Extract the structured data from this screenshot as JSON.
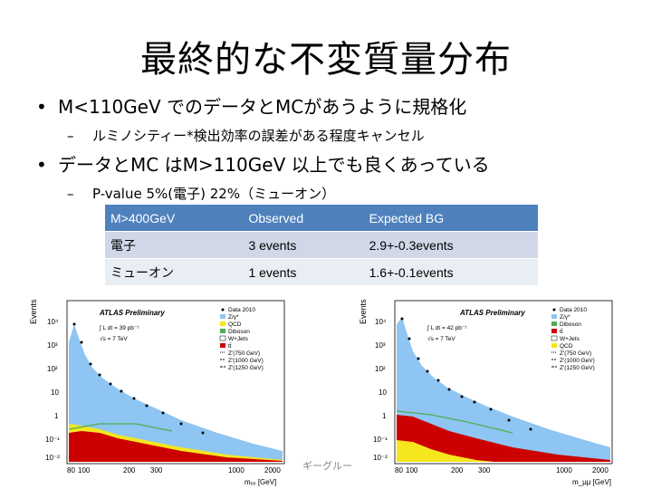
{
  "title": "最終的な不変質量分布",
  "bullets": [
    {
      "text": "M<110GeV でのデータとMCがあうように規格化",
      "sub": "ルミノシティー*検出効率の誤差がある程度キャンセル"
    },
    {
      "text": "データとMC はM>110GeV 以上でも良くあっている",
      "sub": "P-value 5%(電子) 22%（ミューオン）"
    }
  ],
  "table": {
    "headers": [
      "M>400GeV",
      "Observed",
      "Expected BG"
    ],
    "rows": [
      [
        "電子",
        "3 events",
        "2.9+-0.3events"
      ],
      [
        "ミューオン",
        "1 events",
        "1.6+-0.1events"
      ]
    ]
  },
  "plots": [
    {
      "atlas": "ATLAS Preliminary",
      "lumi": "∫ L dt = 39 pb⁻¹",
      "energy": "√s = 7 TeV",
      "ylabel": "Events",
      "xlabel": "mₑₑ [GeV]",
      "yticks": [
        "10⁴",
        "10³",
        "10²",
        "10",
        "1",
        "10⁻¹",
        "10⁻²"
      ],
      "xticks": [
        "80",
        "100",
        "200",
        "300",
        "1000",
        "2000"
      ],
      "legend": [
        "Data 2010",
        "Z/γ*",
        "QCD",
        "Diboson",
        "W+Jets",
        "tt̄",
        "Z′(750 GeV)",
        "Z′(1000 GeV)",
        "Z′(1250 GeV)"
      ]
    },
    {
      "atlas": "ATLAS Preliminary",
      "lumi": "∫ L dt = 42 pb⁻¹",
      "energy": "√s = 7 TeV",
      "ylabel": "Events",
      "xlabel": "m_μμ [GeV]",
      "yticks": [
        "10⁴",
        "10³",
        "10²",
        "10",
        "1",
        "10⁻¹",
        "10⁻²"
      ],
      "xticks": [
        "80",
        "100",
        "200",
        "300",
        "1000",
        "2000"
      ],
      "legend": [
        "Data 2010",
        "Z/γ*",
        "Diboson",
        "tt̄",
        "W+Jets",
        "QCD",
        "Z′(750 GeV)",
        "Z′(1000 GeV)",
        "Z′(1250 GeV)"
      ]
    }
  ],
  "watermark": "ギーグルー",
  "colors": {
    "table_header": "#4f81bd",
    "row1": "#d0d8e8",
    "row2": "#e9edf4",
    "zgamma": "#8ec5f2",
    "ttbar": "#cc0000",
    "qcd": "#f5e61e",
    "diboson": "#4caf50",
    "wjets": "#ffffff"
  }
}
